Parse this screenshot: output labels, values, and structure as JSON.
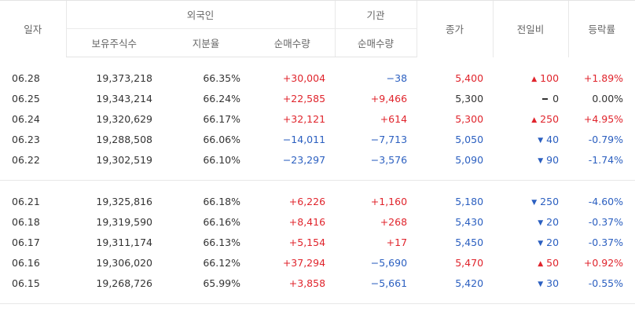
{
  "headers": {
    "date": "일자",
    "foreign": "외국인",
    "institution": "기관",
    "close": "종가",
    "change": "전일비",
    "rate": "등락률",
    "holdings": "보유주식수",
    "share": "지분율",
    "foreign_net": "순매수량",
    "inst_net": "순매수량"
  },
  "colors": {
    "up": "#e0242c",
    "down": "#2b5fc0"
  },
  "groups": [
    [
      {
        "date": "06.28",
        "holdings": "19,373,218",
        "share": "66.35%",
        "foreign_net": "+30,004",
        "foreign_dir": "up",
        "inst_net": "−38",
        "inst_dir": "down",
        "close": "5,400",
        "close_dir": "up",
        "change_icon": "triangle-up-icon",
        "change": "100",
        "change_dir": "up",
        "rate": "+1.89%",
        "rate_dir": "up"
      },
      {
        "date": "06.25",
        "holdings": "19,343,214",
        "share": "66.24%",
        "foreign_net": "+22,585",
        "foreign_dir": "up",
        "inst_net": "+9,466",
        "inst_dir": "up",
        "close": "5,300",
        "close_dir": "flat",
        "change_icon": "dash-icon",
        "change": "0",
        "change_dir": "flat",
        "rate": "0.00%",
        "rate_dir": "flat"
      },
      {
        "date": "06.24",
        "holdings": "19,320,629",
        "share": "66.17%",
        "foreign_net": "+32,121",
        "foreign_dir": "up",
        "inst_net": "+614",
        "inst_dir": "up",
        "close": "5,300",
        "close_dir": "up",
        "change_icon": "triangle-up-icon",
        "change": "250",
        "change_dir": "up",
        "rate": "+4.95%",
        "rate_dir": "up"
      },
      {
        "date": "06.23",
        "holdings": "19,288,508",
        "share": "66.06%",
        "foreign_net": "−14,011",
        "foreign_dir": "down",
        "inst_net": "−7,713",
        "inst_dir": "down",
        "close": "5,050",
        "close_dir": "down",
        "change_icon": "triangle-down-icon",
        "change": "40",
        "change_dir": "down",
        "rate": "-0.79%",
        "rate_dir": "down"
      },
      {
        "date": "06.22",
        "holdings": "19,302,519",
        "share": "66.10%",
        "foreign_net": "−23,297",
        "foreign_dir": "down",
        "inst_net": "−3,576",
        "inst_dir": "down",
        "close": "5,090",
        "close_dir": "down",
        "change_icon": "triangle-down-icon",
        "change": "90",
        "change_dir": "down",
        "rate": "-1.74%",
        "rate_dir": "down"
      }
    ],
    [
      {
        "date": "06.21",
        "holdings": "19,325,816",
        "share": "66.18%",
        "foreign_net": "+6,226",
        "foreign_dir": "up",
        "inst_net": "+1,160",
        "inst_dir": "up",
        "close": "5,180",
        "close_dir": "down",
        "change_icon": "triangle-down-icon",
        "change": "250",
        "change_dir": "down",
        "rate": "-4.60%",
        "rate_dir": "down"
      },
      {
        "date": "06.18",
        "holdings": "19,319,590",
        "share": "66.16%",
        "foreign_net": "+8,416",
        "foreign_dir": "up",
        "inst_net": "+268",
        "inst_dir": "up",
        "close": "5,430",
        "close_dir": "down",
        "change_icon": "triangle-down-icon",
        "change": "20",
        "change_dir": "down",
        "rate": "-0.37%",
        "rate_dir": "down"
      },
      {
        "date": "06.17",
        "holdings": "19,311,174",
        "share": "66.13%",
        "foreign_net": "+5,154",
        "foreign_dir": "up",
        "inst_net": "+17",
        "inst_dir": "up",
        "close": "5,450",
        "close_dir": "down",
        "change_icon": "triangle-down-icon",
        "change": "20",
        "change_dir": "down",
        "rate": "-0.37%",
        "rate_dir": "down"
      },
      {
        "date": "06.16",
        "holdings": "19,306,020",
        "share": "66.12%",
        "foreign_net": "+37,294",
        "foreign_dir": "up",
        "inst_net": "−5,690",
        "inst_dir": "down",
        "close": "5,470",
        "close_dir": "up",
        "change_icon": "triangle-up-icon",
        "change": "50",
        "change_dir": "up",
        "rate": "+0.92%",
        "rate_dir": "up"
      },
      {
        "date": "06.15",
        "holdings": "19,268,726",
        "share": "65.99%",
        "foreign_net": "+3,858",
        "foreign_dir": "up",
        "inst_net": "−5,661",
        "inst_dir": "down",
        "close": "5,420",
        "close_dir": "down",
        "change_icon": "triangle-down-icon",
        "change": "30",
        "change_dir": "down",
        "rate": "-0.55%",
        "rate_dir": "down"
      }
    ]
  ]
}
